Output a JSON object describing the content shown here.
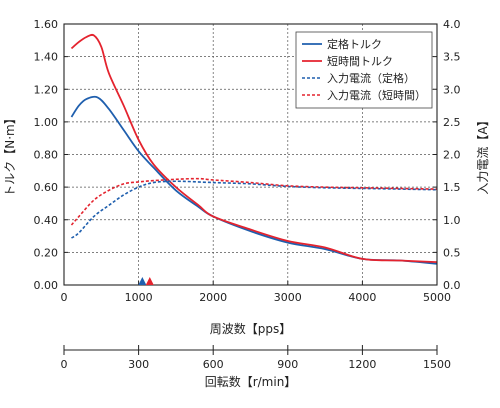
{
  "chart_data": {
    "type": "line",
    "x_axis": {
      "label": "周波数【pps】",
      "range": [
        0,
        5000
      ],
      "ticks": [
        0,
        1000,
        2000,
        3000,
        4000,
        5000
      ]
    },
    "secondary_x_axis": {
      "label": "回転数【r/min】",
      "range": [
        0,
        1500
      ],
      "ticks": [
        0,
        300,
        600,
        900,
        1200,
        1500
      ]
    },
    "y_left": {
      "label": "トルク【N·m】",
      "range": [
        0,
        1.6
      ],
      "ticks": [
        "0.00",
        "0.20",
        "0.40",
        "0.60",
        "0.80",
        "1.00",
        "1.20",
        "1.40",
        "1.60"
      ]
    },
    "y_right": {
      "label": "入力電流【A】",
      "range": [
        0,
        4.0
      ],
      "ticks": [
        "0.0",
        "0.5",
        "1.0",
        "1.5",
        "2.0",
        "2.5",
        "3.0",
        "3.5",
        "4.0"
      ]
    },
    "grid": "dashed",
    "legend_position": "top-right",
    "series": [
      {
        "name": "定格トルク",
        "axis": "left",
        "style": "solid",
        "color": "#1f5fae",
        "points": [
          [
            100,
            1.03
          ],
          [
            200,
            1.1
          ],
          [
            300,
            1.14
          ],
          [
            450,
            1.15
          ],
          [
            600,
            1.08
          ],
          [
            800,
            0.95
          ],
          [
            1000,
            0.82
          ],
          [
            1200,
            0.72
          ],
          [
            1500,
            0.58
          ],
          [
            1800,
            0.48
          ],
          [
            2000,
            0.42
          ],
          [
            2500,
            0.33
          ],
          [
            3000,
            0.26
          ],
          [
            3500,
            0.22
          ],
          [
            4000,
            0.16
          ],
          [
            4500,
            0.15
          ],
          [
            5000,
            0.13
          ]
        ]
      },
      {
        "name": "短時間トルク",
        "axis": "left",
        "style": "solid",
        "color": "#e4232e",
        "points": [
          [
            100,
            1.45
          ],
          [
            200,
            1.49
          ],
          [
            300,
            1.52
          ],
          [
            400,
            1.53
          ],
          [
            500,
            1.46
          ],
          [
            600,
            1.3
          ],
          [
            800,
            1.1
          ],
          [
            1000,
            0.89
          ],
          [
            1200,
            0.74
          ],
          [
            1500,
            0.6
          ],
          [
            1800,
            0.49
          ],
          [
            2000,
            0.42
          ],
          [
            2500,
            0.34
          ],
          [
            3000,
            0.27
          ],
          [
            3500,
            0.23
          ],
          [
            4000,
            0.16
          ],
          [
            4500,
            0.15
          ],
          [
            5000,
            0.14
          ]
        ]
      },
      {
        "name": "入力電流（定格）",
        "axis": "right",
        "style": "dashed",
        "color": "#1f5fae",
        "points": [
          [
            100,
            0.72
          ],
          [
            200,
            0.8
          ],
          [
            400,
            1.05
          ],
          [
            600,
            1.22
          ],
          [
            800,
            1.38
          ],
          [
            1000,
            1.5
          ],
          [
            1200,
            1.57
          ],
          [
            1500,
            1.59
          ],
          [
            2000,
            1.57
          ],
          [
            2500,
            1.55
          ],
          [
            3000,
            1.51
          ],
          [
            3500,
            1.49
          ],
          [
            4000,
            1.48
          ],
          [
            4500,
            1.47
          ],
          [
            5000,
            1.46
          ]
        ]
      },
      {
        "name": "入力電流（短時間）",
        "axis": "right",
        "style": "dashed",
        "color": "#e4232e",
        "points": [
          [
            100,
            0.92
          ],
          [
            200,
            1.05
          ],
          [
            400,
            1.3
          ],
          [
            600,
            1.45
          ],
          [
            800,
            1.55
          ],
          [
            1000,
            1.58
          ],
          [
            1200,
            1.6
          ],
          [
            1500,
            1.62
          ],
          [
            1800,
            1.63
          ],
          [
            2000,
            1.61
          ],
          [
            2500,
            1.57
          ],
          [
            3000,
            1.52
          ],
          [
            3500,
            1.5
          ],
          [
            4000,
            1.49
          ],
          [
            4500,
            1.48
          ],
          [
            5000,
            1.47
          ]
        ]
      }
    ],
    "markers": [
      {
        "x": 1050,
        "color": "#1f5fae",
        "shape": "triangle"
      },
      {
        "x": 1150,
        "color": "#e4232e",
        "shape": "triangle"
      }
    ]
  }
}
